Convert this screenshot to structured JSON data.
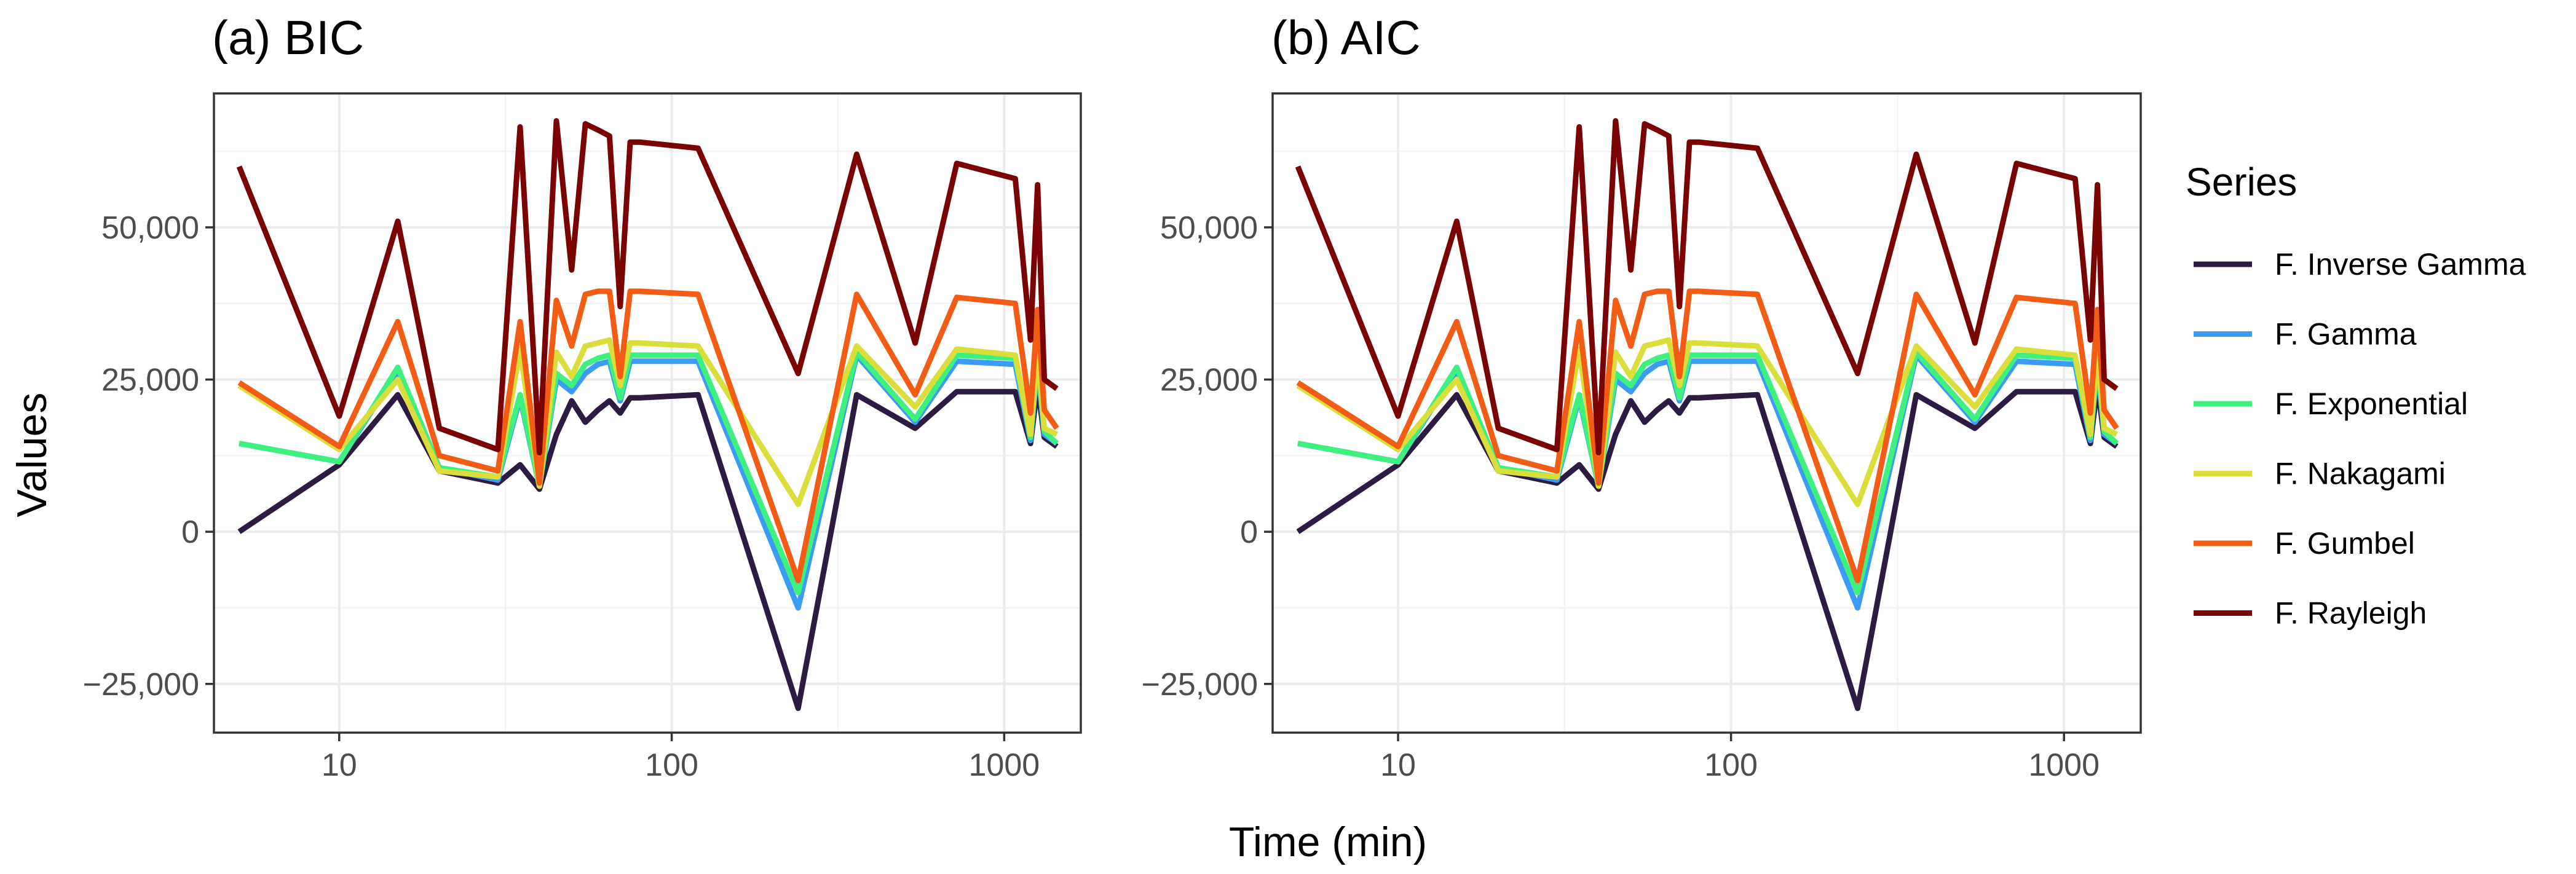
{
  "chart_data": [
    {
      "type": "line",
      "title": "(a) BIC",
      "xlabel": "Time (min)",
      "ylabel": "Values",
      "xscale": "log10",
      "xlim": [
        4.2,
        1700
      ],
      "ylim": [
        -33000,
        72000
      ],
      "xticks": [
        10,
        100,
        1000
      ],
      "xtick_labels": [
        "10",
        "100",
        "1000"
      ],
      "yticks": [
        -25000,
        0,
        25000,
        50000
      ],
      "ytick_labels": [
        "−25,000",
        "0",
        "25,000",
        "50,000"
      ],
      "grid": true,
      "legend_position": "right",
      "x": [
        5,
        10,
        15,
        20,
        30,
        35,
        40,
        45,
        50,
        55,
        60,
        65,
        70,
        75,
        80,
        120,
        240,
        360,
        540,
        720,
        1080,
        1200,
        1260,
        1320,
        1440
      ],
      "series": [
        {
          "name": "F. Inverse Gamma",
          "color": "#2d1b41",
          "values": [
            0,
            11000,
            22500,
            10000,
            8000,
            11000,
            7000,
            16000,
            21500,
            18000,
            20000,
            21500,
            19500,
            22000,
            22000,
            22500,
            -29000,
            22500,
            17000,
            23000,
            23000,
            14500,
            24000,
            15500,
            14000
          ]
        },
        {
          "name": "F. Gamma",
          "color": "#3c9bf4",
          "values": [
            14500,
            11500,
            26500,
            10500,
            8500,
            22000,
            7500,
            25000,
            23000,
            26000,
            27500,
            28000,
            21500,
            28000,
            28000,
            28000,
            -12500,
            29000,
            18000,
            28000,
            27500,
            15000,
            27500,
            16000,
            14500
          ]
        },
        {
          "name": "F. Exponential",
          "color": "#3ef07e",
          "values": [
            14500,
            11500,
            27000,
            10500,
            9000,
            22500,
            7500,
            26000,
            24000,
            27500,
            28500,
            29000,
            22000,
            29000,
            29000,
            29000,
            -10000,
            29500,
            18500,
            29000,
            28500,
            15500,
            28500,
            16500,
            14500
          ]
        },
        {
          "name": "F. Nakagami",
          "color": "#d9de3a",
          "values": [
            24000,
            13500,
            25000,
            10000,
            9000,
            30000,
            7500,
            29500,
            25500,
            30500,
            31000,
            31500,
            24000,
            31000,
            31000,
            30500,
            4500,
            30500,
            20500,
            30000,
            29000,
            16000,
            29500,
            17000,
            16000
          ]
        },
        {
          "name": "F. Gumbel",
          "color": "#f25c14",
          "values": [
            24500,
            14000,
            34500,
            12500,
            10000,
            34500,
            8000,
            38000,
            30500,
            39000,
            39500,
            39500,
            25500,
            39500,
            39500,
            39000,
            -8000,
            39000,
            22500,
            38500,
            37500,
            19500,
            36500,
            20000,
            17000
          ]
        },
        {
          "name": "F. Rayleigh",
          "color": "#7a0403",
          "values": [
            60000,
            19000,
            51000,
            17000,
            13500,
            66500,
            13000,
            67500,
            43000,
            67000,
            66000,
            65000,
            37000,
            64000,
            64000,
            63000,
            26000,
            62000,
            31000,
            60500,
            58000,
            31500,
            57000,
            25000,
            23500
          ]
        }
      ]
    },
    {
      "type": "line",
      "title": "(b) AIC",
      "xlabel": "Time (min)",
      "ylabel": "Values",
      "xscale": "log10",
      "xlim": [
        4.2,
        1700
      ],
      "ylim": [
        -33000,
        72000
      ],
      "xticks": [
        10,
        100,
        1000
      ],
      "xtick_labels": [
        "10",
        "100",
        "1000"
      ],
      "yticks": [
        -25000,
        0,
        25000,
        50000
      ],
      "ytick_labels": [
        "−25,000",
        "0",
        "25,000",
        "50,000"
      ],
      "grid": true,
      "legend_position": "right",
      "x": [
        5,
        10,
        15,
        20,
        30,
        35,
        40,
        45,
        50,
        55,
        60,
        65,
        70,
        75,
        80,
        120,
        240,
        360,
        540,
        720,
        1080,
        1200,
        1260,
        1320,
        1440
      ],
      "series": [
        {
          "name": "F. Inverse Gamma",
          "color": "#2d1b41",
          "values": [
            0,
            11000,
            22500,
            10000,
            8000,
            11000,
            7000,
            16000,
            21500,
            18000,
            20000,
            21500,
            19500,
            22000,
            22000,
            22500,
            -29000,
            22500,
            17000,
            23000,
            23000,
            14500,
            24000,
            15500,
            14000
          ]
        },
        {
          "name": "F. Gamma",
          "color": "#3c9bf4",
          "values": [
            14500,
            11500,
            26500,
            10500,
            8500,
            22000,
            7500,
            25000,
            23000,
            26000,
            27500,
            28000,
            21500,
            28000,
            28000,
            28000,
            -12500,
            29000,
            18000,
            28000,
            27500,
            15000,
            27500,
            16000,
            14500
          ]
        },
        {
          "name": "F. Exponential",
          "color": "#3ef07e",
          "values": [
            14500,
            11500,
            27000,
            10500,
            9000,
            22500,
            7500,
            26000,
            24000,
            27500,
            28500,
            29000,
            22000,
            29000,
            29000,
            29000,
            -10000,
            29500,
            18500,
            29000,
            28500,
            15500,
            28500,
            16500,
            14500
          ]
        },
        {
          "name": "F. Nakagami",
          "color": "#d9de3a",
          "values": [
            24000,
            13500,
            25000,
            10000,
            9000,
            30000,
            7500,
            29500,
            25500,
            30500,
            31000,
            31500,
            24000,
            31000,
            31000,
            30500,
            4500,
            30500,
            20500,
            30000,
            29000,
            16000,
            29500,
            17000,
            16000
          ]
        },
        {
          "name": "F. Gumbel",
          "color": "#f25c14",
          "values": [
            24500,
            14000,
            34500,
            12500,
            10000,
            34500,
            8000,
            38000,
            30500,
            39000,
            39500,
            39500,
            25500,
            39500,
            39500,
            39000,
            -8000,
            39000,
            22500,
            38500,
            37500,
            19500,
            36500,
            20000,
            17000
          ]
        },
        {
          "name": "F. Rayleigh",
          "color": "#7a0403",
          "values": [
            60000,
            19000,
            51000,
            17000,
            13500,
            66500,
            13000,
            67500,
            43000,
            67000,
            66000,
            65000,
            37000,
            64000,
            64000,
            63000,
            26000,
            62000,
            31000,
            60500,
            58000,
            31500,
            57000,
            25000,
            23500
          ]
        }
      ]
    }
  ],
  "legend": {
    "title": "Series",
    "entries": [
      {
        "name": "F. Inverse Gamma",
        "color": "#2d1b41"
      },
      {
        "name": "F. Gamma",
        "color": "#3c9bf4"
      },
      {
        "name": "F. Exponential",
        "color": "#3ef07e"
      },
      {
        "name": "F. Nakagami",
        "color": "#d9de3a"
      },
      {
        "name": "F. Gumbel",
        "color": "#f25c14"
      },
      {
        "name": "F. Rayleigh",
        "color": "#7a0403"
      }
    ]
  },
  "shared_axis": {
    "xlabel": "Time (min)",
    "ylabel": "Values"
  }
}
